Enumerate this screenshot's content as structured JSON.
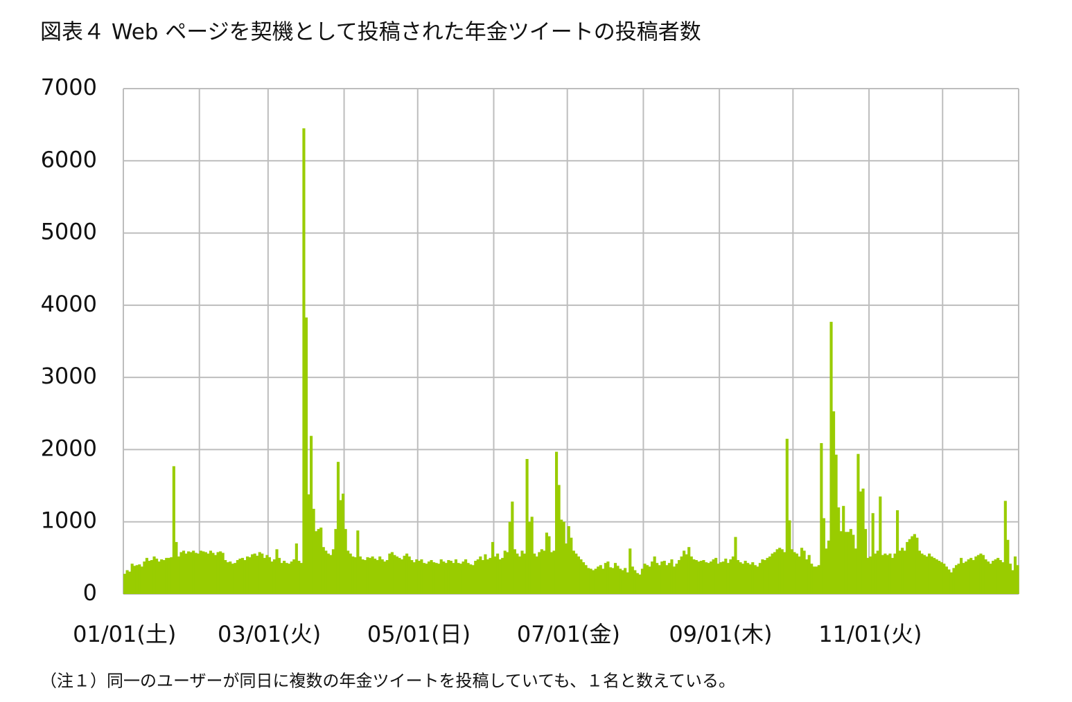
{
  "chart_data": {
    "type": "bar",
    "title": "図表４ Web ページを契機として投稿された年金ツイートの投稿者数",
    "note": "（注１）同一のユーザーが同日に複数の年金ツイートを投稿していても、１名と数えている。",
    "color": "#99cc00",
    "grid": true,
    "ylim": [
      0,
      7000
    ],
    "yticks": [
      0,
      1000,
      2000,
      3000,
      4000,
      5000,
      6000,
      7000
    ],
    "xgrid": [
      0,
      31,
      59,
      90,
      120,
      151,
      181,
      212,
      243,
      273,
      304,
      334,
      365
    ],
    "categories": [
      "01/01(土)",
      null,
      null,
      null,
      null,
      null,
      null,
      null,
      null,
      null,
      null,
      null,
      null,
      null,
      null,
      null,
      null,
      null,
      null,
      null,
      null,
      null,
      null,
      null,
      null,
      null,
      null,
      null,
      null,
      null,
      null,
      null,
      null,
      null,
      null,
      null,
      null,
      null,
      null,
      null,
      null,
      null,
      null,
      null,
      null,
      null,
      null,
      null,
      null,
      null,
      null,
      null,
      null,
      null,
      null,
      null,
      null,
      null,
      null,
      "03/01(火)",
      null,
      null,
      null,
      null,
      null,
      null,
      null,
      null,
      null,
      null,
      null,
      null,
      null,
      null,
      null,
      null,
      null,
      null,
      null,
      null,
      null,
      null,
      null,
      null,
      null,
      null,
      null,
      null,
      null,
      null,
      null,
      null,
      null,
      null,
      null,
      null,
      null,
      null,
      null,
      null,
      null,
      null,
      null,
      null,
      null,
      null,
      null,
      null,
      null,
      null,
      null,
      null,
      null,
      null,
      null,
      null,
      null,
      null,
      null,
      null,
      "05/01(日)",
      null,
      null,
      null,
      null,
      null,
      null,
      null,
      null,
      null,
      null,
      null,
      null,
      null,
      null,
      null,
      null,
      null,
      null,
      null,
      null,
      null,
      null,
      null,
      null,
      null,
      null,
      null,
      null,
      null,
      null,
      null,
      null,
      null,
      null,
      null,
      null,
      null,
      null,
      null,
      null,
      null,
      null,
      null,
      null,
      null,
      null,
      null,
      null,
      null,
      null,
      null,
      null,
      null,
      null,
      null,
      null,
      null,
      null,
      null,
      null,
      "07/01(金)",
      null,
      null,
      null,
      null,
      null,
      null,
      null,
      null,
      null,
      null,
      null,
      null,
      null,
      null,
      null,
      null,
      null,
      null,
      null,
      null,
      null,
      null,
      null,
      null,
      null,
      null,
      null,
      null,
      null,
      null,
      null,
      null,
      null,
      null,
      null,
      null,
      null,
      null,
      null,
      null,
      null,
      null,
      null,
      null,
      null,
      null,
      null,
      null,
      null,
      null,
      null,
      null,
      null,
      null,
      null,
      null,
      null,
      null,
      null,
      null,
      null,
      "09/01(木)",
      null,
      null,
      null,
      null,
      null,
      null,
      null,
      null,
      null,
      null,
      null,
      null,
      null,
      null,
      null,
      null,
      null,
      null,
      null,
      null,
      null,
      null,
      null,
      null,
      null,
      null,
      null,
      null,
      null,
      null,
      null,
      null,
      null,
      null,
      null,
      null,
      null,
      null,
      null,
      null,
      null,
      null,
      null,
      null,
      null,
      null,
      null,
      null,
      null,
      null,
      null,
      null,
      null,
      null,
      null,
      null,
      null,
      null,
      null,
      null,
      "11/01(火)",
      null,
      null,
      null,
      null,
      null,
      null,
      null,
      null,
      null,
      null,
      null,
      null,
      null,
      null,
      null,
      null,
      null,
      null,
      null,
      null,
      null,
      null,
      null,
      null,
      null,
      null,
      null,
      null,
      null,
      null,
      null,
      null,
      null,
      null,
      null,
      null,
      null,
      null,
      null,
      null,
      null,
      null,
      null,
      null,
      null,
      null,
      null,
      null,
      null,
      null,
      null,
      null,
      null,
      null,
      null,
      null,
      null,
      null,
      null,
      null
    ],
    "values": [
      280,
      330,
      310,
      420,
      390,
      400,
      410,
      380,
      450,
      500,
      460,
      470,
      520,
      490,
      450,
      480,
      470,
      500,
      500,
      510,
      1770,
      720,
      520,
      580,
      600,
      560,
      590,
      580,
      600,
      570,
      560,
      600,
      590,
      580,
      560,
      600,
      570,
      540,
      580,
      590,
      570,
      470,
      440,
      450,
      420,
      430,
      470,
      490,
      500,
      470,
      520,
      510,
      550,
      560,
      530,
      580,
      560,
      500,
      540,
      510,
      450,
      480,
      620,
      500,
      430,
      460,
      430,
      420,
      450,
      480,
      700,
      460,
      430,
      6450,
      3830,
      1380,
      2190,
      1180,
      870,
      900,
      920,
      650,
      600,
      560,
      540,
      620,
      900,
      1830,
      1300,
      1390,
      900,
      600,
      560,
      520,
      510,
      880,
      520,
      480,
      470,
      510,
      500,
      520,
      490,
      470,
      520,
      480,
      450,
      470,
      560,
      580,
      540,
      520,
      500,
      480,
      530,
      560,
      520,
      470,
      440,
      480,
      460,
      480,
      430,
      420,
      450,
      470,
      440,
      430,
      420,
      480,
      450,
      430,
      470,
      460,
      430,
      480,
      430,
      420,
      450,
      480,
      430,
      410,
      400,
      460,
      480,
      520,
      470,
      550,
      480,
      500,
      720,
      520,
      560,
      480,
      500,
      600,
      580,
      1000,
      1280,
      620,
      560,
      520,
      600,
      560,
      1870,
      1000,
      1070,
      560,
      520,
      580,
      620,
      600,
      850,
      800,
      580,
      600,
      1970,
      1510,
      1030,
      1000,
      700,
      940,
      780,
      600,
      560,
      520,
      480,
      440,
      400,
      360,
      350,
      330,
      350,
      380,
      400,
      350,
      430,
      450,
      370,
      360,
      430,
      390,
      350,
      330,
      360,
      300,
      630,
      380,
      330,
      290,
      270,
      350,
      420,
      400,
      380,
      450,
      520,
      430,
      400,
      450,
      460,
      400,
      430,
      480,
      380,
      420,
      470,
      520,
      600,
      550,
      650,
      520,
      480,
      470,
      450,
      460,
      470,
      440,
      430,
      450,
      480,
      500,
      420,
      440,
      450,
      490,
      430,
      480,
      520,
      790,
      470,
      440,
      420,
      460,
      430,
      410,
      440,
      400,
      380,
      430,
      480,
      470,
      500,
      520,
      560,
      580,
      620,
      640,
      620,
      580,
      2150,
      1020,
      620,
      580,
      560,
      520,
      640,
      600,
      480,
      540,
      420,
      380,
      380,
      400,
      2090,
      1050,
      630,
      740,
      3770,
      2530,
      1930,
      1200,
      870,
      1220,
      860,
      860,
      900,
      820,
      630,
      1940,
      1420,
      1460,
      900,
      500,
      520,
      1120,
      560,
      600,
      1350,
      540,
      560,
      540,
      560,
      500,
      560,
      1160,
      600,
      640,
      600,
      720,
      760,
      800,
      830,
      780,
      600,
      560,
      540,
      520,
      560,
      520,
      500,
      480,
      460,
      440,
      420,
      380,
      340,
      300,
      360,
      400,
      420,
      500,
      430,
      450,
      480,
      500,
      470,
      520,
      540,
      560,
      540,
      480,
      450,
      420,
      460,
      480,
      500,
      470,
      440,
      1290,
      750,
      420,
      330,
      520,
      400
    ]
  }
}
